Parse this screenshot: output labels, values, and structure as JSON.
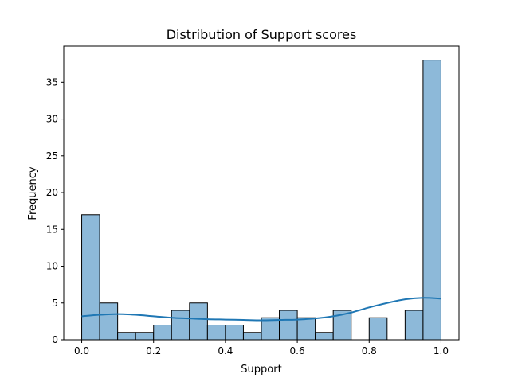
{
  "chart_data": {
    "type": "bar",
    "title": "Distribution of Support scores",
    "xlabel": "Support",
    "ylabel": "Frequency",
    "xlim": [
      -0.05,
      1.05
    ],
    "ylim": [
      0,
      39.9
    ],
    "xticks": [
      0.0,
      0.2,
      0.4,
      0.6,
      0.8,
      1.0
    ],
    "xtick_labels": [
      "0.0",
      "0.2",
      "0.4",
      "0.6",
      "0.8",
      "1.0"
    ],
    "yticks": [
      0,
      5,
      10,
      15,
      20,
      25,
      30,
      35
    ],
    "ytick_labels": [
      "0",
      "5",
      "10",
      "15",
      "20",
      "25",
      "30",
      "35"
    ],
    "bins": [
      {
        "x0": 0.0,
        "x1": 0.05,
        "count": 17
      },
      {
        "x0": 0.05,
        "x1": 0.1,
        "count": 5
      },
      {
        "x0": 0.1,
        "x1": 0.15,
        "count": 1
      },
      {
        "x0": 0.15,
        "x1": 0.2,
        "count": 1
      },
      {
        "x0": 0.2,
        "x1": 0.25,
        "count": 2
      },
      {
        "x0": 0.25,
        "x1": 0.3,
        "count": 4
      },
      {
        "x0": 0.3,
        "x1": 0.35,
        "count": 5
      },
      {
        "x0": 0.35,
        "x1": 0.4,
        "count": 2
      },
      {
        "x0": 0.4,
        "x1": 0.45,
        "count": 2
      },
      {
        "x0": 0.45,
        "x1": 0.5,
        "count": 1
      },
      {
        "x0": 0.5,
        "x1": 0.55,
        "count": 3
      },
      {
        "x0": 0.55,
        "x1": 0.6,
        "count": 4
      },
      {
        "x0": 0.6,
        "x1": 0.65,
        "count": 3
      },
      {
        "x0": 0.65,
        "x1": 0.7,
        "count": 1
      },
      {
        "x0": 0.7,
        "x1": 0.75,
        "count": 4
      },
      {
        "x0": 0.75,
        "x1": 0.8,
        "count": 0
      },
      {
        "x0": 0.8,
        "x1": 0.85,
        "count": 3
      },
      {
        "x0": 0.85,
        "x1": 0.9,
        "count": 0
      },
      {
        "x0": 0.9,
        "x1": 0.95,
        "count": 4
      },
      {
        "x0": 0.95,
        "x1": 1.0,
        "count": 38
      }
    ],
    "kde": {
      "x": [
        0.0,
        0.05,
        0.1,
        0.15,
        0.2,
        0.25,
        0.3,
        0.35,
        0.4,
        0.45,
        0.5,
        0.55,
        0.6,
        0.65,
        0.7,
        0.75,
        0.8,
        0.85,
        0.9,
        0.95,
        1.0
      ],
      "y": [
        3.2,
        3.4,
        3.5,
        3.4,
        3.2,
        3.0,
        2.9,
        2.8,
        2.75,
        2.7,
        2.65,
        2.7,
        2.75,
        2.9,
        3.2,
        3.7,
        4.4,
        5.0,
        5.5,
        5.7,
        5.6
      ]
    },
    "colors": {
      "bar_fill": "#8db9d9",
      "bar_edge": "#000000",
      "kde_line": "#1f77b4"
    },
    "grid": false,
    "legend": "none"
  }
}
